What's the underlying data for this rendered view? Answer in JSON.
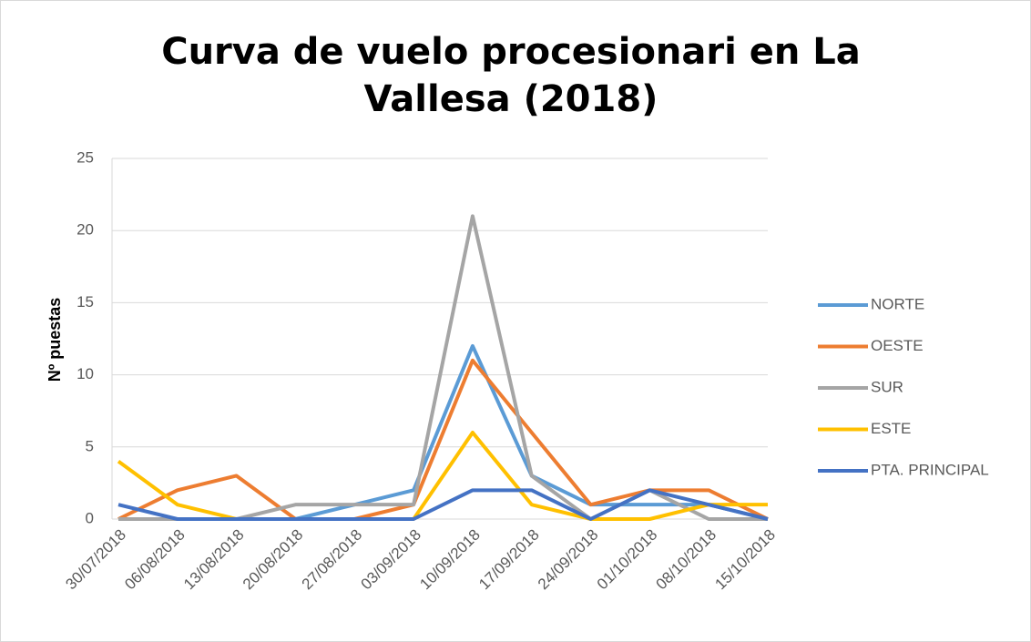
{
  "chart_data": {
    "type": "line",
    "title": "Curva de vuelo procesionari en La Vallesa (2018)",
    "ylabel": "Nº puestas",
    "categories": [
      "30/07/2018",
      "06/08/2018",
      "13/08/2018",
      "20/08/2018",
      "27/08/2018",
      "03/09/2018",
      "10/09/2018",
      "17/09/2018",
      "24/09/2018",
      "01/10/2018",
      "08/10/2018",
      "15/10/2018"
    ],
    "series": [
      {
        "name": "NORTE",
        "color": "#5b9bd5",
        "values": [
          0,
          0,
          0,
          0,
          1,
          2,
          12,
          3,
          1,
          1,
          1,
          0
        ]
      },
      {
        "name": "OESTE",
        "color": "#ed7d31",
        "values": [
          0,
          2,
          3,
          0,
          0,
          1,
          11,
          6,
          1,
          2,
          2,
          0
        ]
      },
      {
        "name": "SUR",
        "color": "#a5a5a5",
        "values": [
          0,
          0,
          0,
          1,
          1,
          1,
          21,
          3,
          0,
          2,
          0,
          0
        ]
      },
      {
        "name": "ESTE",
        "color": "#ffc000",
        "values": [
          4,
          1,
          0,
          0,
          0,
          0,
          6,
          1,
          0,
          0,
          1,
          1
        ]
      },
      {
        "name": "PTA. PRINCIPAL",
        "color": "#4472c4",
        "values": [
          1,
          0,
          0,
          0,
          0,
          0,
          2,
          2,
          0,
          2,
          1,
          0
        ]
      }
    ],
    "ylim": [
      0,
      25
    ],
    "yticks": [
      0,
      5,
      10,
      15,
      20,
      25
    ],
    "grid": true,
    "legend": "right"
  }
}
